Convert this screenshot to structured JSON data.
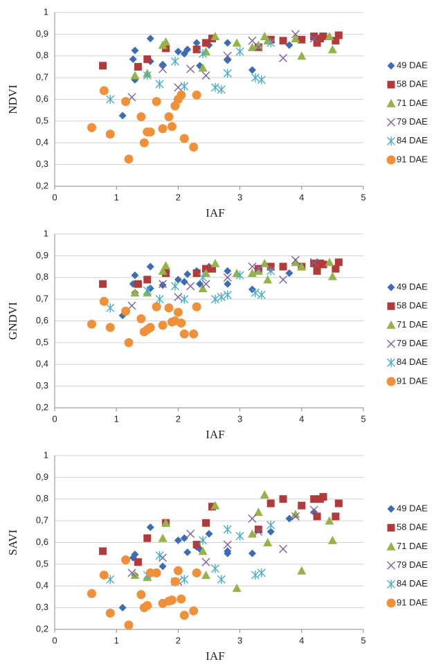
{
  "chart_data": [
    {
      "type": "scatter",
      "xlabel": "IAF",
      "ylabel": "NDVI",
      "xlim": [
        0,
        5
      ],
      "ylim": [
        0.2,
        1
      ],
      "xticks": [
        0,
        1,
        2,
        3,
        4,
        5
      ],
      "yticks": [
        {
          "value": 0.2,
          "label": "0,2"
        },
        {
          "value": 0.3,
          "label": "0,3"
        },
        {
          "value": 0.4,
          "label": "0,4"
        },
        {
          "value": 0.5,
          "label": "0,5"
        },
        {
          "value": 0.6,
          "label": "0,6"
        },
        {
          "value": 0.7,
          "label": "0,7"
        },
        {
          "value": 0.8,
          "label": "0,8"
        },
        {
          "value": 0.9,
          "label": "0,9"
        },
        1
      ],
      "grid": true,
      "legend": "right",
      "series": [
        {
          "name": "49 DAE",
          "color": "#3a6db5",
          "marker": "diamond",
          "x": [
            1.1,
            1.27,
            1.3,
            1.3,
            1.55,
            1.55,
            1.75,
            2.0,
            2.1,
            2.15,
            2.3,
            2.35,
            2.5,
            2.8,
            2.8,
            3.2,
            3.5,
            3.8,
            4.2
          ],
          "values": [
            0.525,
            0.785,
            0.825,
            0.69,
            0.88,
            0.775,
            0.76,
            0.82,
            0.81,
            0.83,
            0.86,
            0.755,
            0.85,
            0.78,
            0.86,
            0.735,
            0.87,
            0.85,
            0.89
          ]
        },
        {
          "name": "58 DAE",
          "color": "#b33a3a",
          "marker": "square",
          "x": [
            0.78,
            1.35,
            1.5,
            1.8,
            2.3,
            2.45,
            2.55,
            3.3,
            3.5,
            3.7,
            4.0,
            4.2,
            4.25,
            4.3,
            4.35,
            4.55,
            4.6
          ],
          "values": [
            0.755,
            0.75,
            0.785,
            0.835,
            0.83,
            0.86,
            0.88,
            0.84,
            0.875,
            0.87,
            0.875,
            0.89,
            0.86,
            0.88,
            0.89,
            0.87,
            0.895
          ]
        },
        {
          "name": "71 DAE",
          "color": "#94b447",
          "marker": "triangle",
          "x": [
            1.3,
            1.5,
            1.75,
            1.8,
            2.4,
            2.45,
            2.6,
            2.95,
            3.2,
            3.3,
            3.4,
            3.45,
            3.9,
            4.0,
            4.45,
            4.5
          ],
          "values": [
            0.71,
            0.72,
            0.85,
            0.865,
            0.745,
            0.82,
            0.89,
            0.86,
            0.84,
            0.85,
            0.89,
            0.87,
            0.88,
            0.8,
            0.89,
            0.83
          ]
        },
        {
          "name": "79 DAE",
          "color": "#7d5fa0",
          "marker": "x",
          "x": [
            1.25,
            1.75,
            2.0,
            2.2,
            2.45,
            2.8,
            3.2,
            3.3,
            3.7,
            3.9,
            4.2
          ],
          "values": [
            0.61,
            0.74,
            0.655,
            0.74,
            0.71,
            0.8,
            0.87,
            0.84,
            0.79,
            0.9,
            0.88
          ]
        },
        {
          "name": "84 DAE",
          "color": "#4bacc6",
          "marker": "asterisk",
          "x": [
            0.9,
            1.5,
            1.7,
            1.95,
            2.1,
            2.4,
            2.6,
            2.7,
            2.8,
            3.0,
            3.25,
            3.35,
            3.5
          ],
          "values": [
            0.6,
            0.71,
            0.67,
            0.775,
            0.66,
            0.81,
            0.655,
            0.645,
            0.72,
            0.82,
            0.7,
            0.69,
            0.86
          ]
        },
        {
          "name": "91 DAE",
          "color": "#f0913a",
          "marker": "circle",
          "x": [
            0.6,
            0.8,
            0.9,
            1.15,
            1.2,
            1.4,
            1.45,
            1.5,
            1.55,
            1.65,
            1.75,
            1.85,
            1.9,
            1.95,
            2.0,
            2.05,
            2.1,
            2.25,
            2.3
          ],
          "values": [
            0.47,
            0.64,
            0.44,
            0.59,
            0.325,
            0.52,
            0.4,
            0.45,
            0.45,
            0.59,
            0.465,
            0.52,
            0.475,
            0.57,
            0.6,
            0.62,
            0.42,
            0.38,
            0.62
          ]
        }
      ]
    },
    {
      "type": "scatter",
      "xlabel": "IAF",
      "ylabel": "GNDVI",
      "xlim": [
        0,
        5
      ],
      "ylim": [
        0.2,
        1
      ],
      "xticks": [
        0,
        1,
        2,
        3,
        4,
        5
      ],
      "yticks": [
        {
          "value": 0.2,
          "label": "0,2"
        },
        {
          "value": 0.3,
          "label": "0,3"
        },
        {
          "value": 0.4,
          "label": "0,4"
        },
        {
          "value": 0.5,
          "label": "0,5"
        },
        {
          "value": 0.6,
          "label": "0,6"
        },
        {
          "value": 0.7,
          "label": "0,7"
        },
        {
          "value": 0.8,
          "label": "0,8"
        },
        {
          "value": 0.9,
          "label": "0,9"
        },
        1
      ],
      "grid": true,
      "legend": "right",
      "series": [
        {
          "name": "49 DAE",
          "color": "#3a6db5",
          "marker": "diamond",
          "x": [
            1.1,
            1.27,
            1.3,
            1.3,
            1.55,
            1.55,
            1.75,
            2.0,
            2.1,
            2.15,
            2.3,
            2.35,
            2.5,
            2.8,
            2.8,
            3.2,
            3.5,
            3.8,
            4.2
          ],
          "values": [
            0.625,
            0.77,
            0.81,
            0.73,
            0.85,
            0.75,
            0.765,
            0.79,
            0.78,
            0.815,
            0.83,
            0.77,
            0.85,
            0.77,
            0.83,
            0.745,
            0.84,
            0.82,
            0.86
          ]
        },
        {
          "name": "58 DAE",
          "color": "#b33a3a",
          "marker": "square",
          "x": [
            0.78,
            1.35,
            1.5,
            1.8,
            2.3,
            2.45,
            2.55,
            3.3,
            3.5,
            3.7,
            4.0,
            4.2,
            4.25,
            4.3,
            4.35,
            4.55,
            4.6
          ],
          "values": [
            0.77,
            0.77,
            0.79,
            0.82,
            0.82,
            0.84,
            0.84,
            0.84,
            0.85,
            0.85,
            0.85,
            0.865,
            0.83,
            0.865,
            0.86,
            0.84,
            0.87
          ]
        },
        {
          "name": "71 DAE",
          "color": "#94b447",
          "marker": "triangle",
          "x": [
            1.3,
            1.5,
            1.75,
            1.8,
            2.4,
            2.45,
            2.6,
            2.95,
            3.2,
            3.3,
            3.4,
            3.45,
            3.9,
            4.0,
            4.45,
            4.5
          ],
          "values": [
            0.73,
            0.73,
            0.83,
            0.855,
            0.75,
            0.82,
            0.865,
            0.82,
            0.82,
            0.83,
            0.865,
            0.79,
            0.87,
            0.85,
            0.87,
            0.805
          ]
        },
        {
          "name": "79 DAE",
          "color": "#7d5fa0",
          "marker": "x",
          "x": [
            1.25,
            1.75,
            2.0,
            2.2,
            2.45,
            2.8,
            3.2,
            3.3,
            3.7,
            3.9,
            4.2
          ],
          "values": [
            0.67,
            0.77,
            0.71,
            0.76,
            0.77,
            0.8,
            0.85,
            0.84,
            0.79,
            0.88,
            0.87
          ]
        },
        {
          "name": "84 DAE",
          "color": "#4bacc6",
          "marker": "asterisk",
          "x": [
            0.9,
            1.5,
            1.7,
            1.95,
            2.1,
            2.4,
            2.6,
            2.7,
            2.8,
            3.0,
            3.25,
            3.35,
            3.5
          ],
          "values": [
            0.66,
            0.74,
            0.7,
            0.76,
            0.7,
            0.8,
            0.7,
            0.71,
            0.72,
            0.81,
            0.73,
            0.72,
            0.83
          ]
        },
        {
          "name": "91 DAE",
          "color": "#f0913a",
          "marker": "circle",
          "x": [
            0.6,
            0.8,
            0.9,
            1.15,
            1.2,
            1.4,
            1.45,
            1.5,
            1.55,
            1.65,
            1.75,
            1.85,
            1.9,
            1.95,
            2.0,
            2.05,
            2.1,
            2.25,
            2.3
          ],
          "values": [
            0.585,
            0.69,
            0.57,
            0.645,
            0.5,
            0.61,
            0.55,
            0.56,
            0.57,
            0.665,
            0.58,
            0.66,
            0.595,
            0.6,
            0.64,
            0.59,
            0.54,
            0.54,
            0.665
          ]
        }
      ]
    },
    {
      "type": "scatter",
      "xlabel": "IAF",
      "ylabel": "SAVI",
      "xlim": [
        0,
        5
      ],
      "ylim": [
        0.2,
        1
      ],
      "xticks": [
        0,
        1,
        2,
        3,
        4,
        5
      ],
      "yticks": [
        {
          "value": 0.2,
          "label": "0,2"
        },
        {
          "value": 0.3,
          "label": "0,3"
        },
        {
          "value": 0.4,
          "label": "0,4"
        },
        {
          "value": 0.5,
          "label": "0,5"
        },
        {
          "value": 0.6,
          "label": "0,6"
        },
        {
          "value": 0.7,
          "label": "0,7"
        },
        {
          "value": 0.8,
          "label": "0,8"
        },
        {
          "value": 0.9,
          "label": "0,9"
        },
        1
      ],
      "grid": true,
      "legend": "right",
      "series": [
        {
          "name": "49 DAE",
          "color": "#3a6db5",
          "marker": "diamond",
          "x": [
            1.1,
            1.27,
            1.3,
            1.3,
            1.55,
            1.55,
            1.75,
            2.0,
            2.1,
            2.15,
            2.3,
            2.35,
            2.5,
            2.8,
            2.8,
            3.2,
            3.5,
            3.8,
            4.2
          ],
          "values": [
            0.3,
            0.53,
            0.545,
            0.45,
            0.67,
            0.46,
            0.49,
            0.61,
            0.62,
            0.555,
            0.58,
            0.57,
            0.64,
            0.55,
            0.56,
            0.55,
            0.65,
            0.71,
            0.74
          ]
        },
        {
          "name": "58 DAE",
          "color": "#b33a3a",
          "marker": "square",
          "x": [
            0.78,
            1.35,
            1.5,
            1.8,
            2.3,
            2.45,
            2.55,
            3.3,
            3.5,
            3.7,
            4.0,
            4.2,
            4.25,
            4.3,
            4.35,
            4.55,
            4.6
          ],
          "values": [
            0.56,
            0.51,
            0.62,
            0.69,
            0.59,
            0.69,
            0.765,
            0.66,
            0.78,
            0.8,
            0.77,
            0.8,
            0.72,
            0.8,
            0.81,
            0.72,
            0.78
          ]
        },
        {
          "name": "71 DAE",
          "color": "#94b447",
          "marker": "triangle",
          "x": [
            1.3,
            1.5,
            1.75,
            1.8,
            2.4,
            2.45,
            2.6,
            2.95,
            3.2,
            3.3,
            3.4,
            3.45,
            3.9,
            4.0,
            4.45,
            4.5
          ],
          "values": [
            0.45,
            0.44,
            0.62,
            0.69,
            0.56,
            0.45,
            0.77,
            0.39,
            0.64,
            0.74,
            0.82,
            0.6,
            0.73,
            0.47,
            0.7,
            0.61
          ]
        },
        {
          "name": "79 DAE",
          "color": "#7d5fa0",
          "marker": "x",
          "x": [
            1.25,
            1.75,
            2.0,
            2.2,
            2.45,
            2.8,
            3.2,
            3.3,
            3.7,
            3.9,
            4.2
          ],
          "values": [
            0.46,
            0.53,
            0.42,
            0.64,
            0.51,
            0.59,
            0.71,
            0.65,
            0.57,
            0.72,
            0.75
          ]
        },
        {
          "name": "84 DAE",
          "color": "#4bacc6",
          "marker": "asterisk",
          "x": [
            0.9,
            1.5,
            1.7,
            1.95,
            2.1,
            2.4,
            2.6,
            2.7,
            2.8,
            3.0,
            3.25,
            3.35,
            3.5
          ],
          "values": [
            0.43,
            0.45,
            0.54,
            0.42,
            0.43,
            0.61,
            0.48,
            0.43,
            0.66,
            0.63,
            0.45,
            0.46,
            0.68
          ]
        },
        {
          "name": "91 DAE",
          "color": "#f0913a",
          "marker": "circle",
          "x": [
            0.6,
            0.8,
            0.9,
            1.15,
            1.2,
            1.4,
            1.45,
            1.5,
            1.55,
            1.65,
            1.75,
            1.85,
            1.9,
            1.95,
            2.0,
            2.05,
            2.1,
            2.25,
            2.3
          ],
          "values": [
            0.365,
            0.45,
            0.275,
            0.52,
            0.22,
            0.36,
            0.3,
            0.31,
            0.46,
            0.46,
            0.32,
            0.33,
            0.335,
            0.42,
            0.47,
            0.34,
            0.265,
            0.285,
            0.46
          ]
        }
      ]
    }
  ]
}
